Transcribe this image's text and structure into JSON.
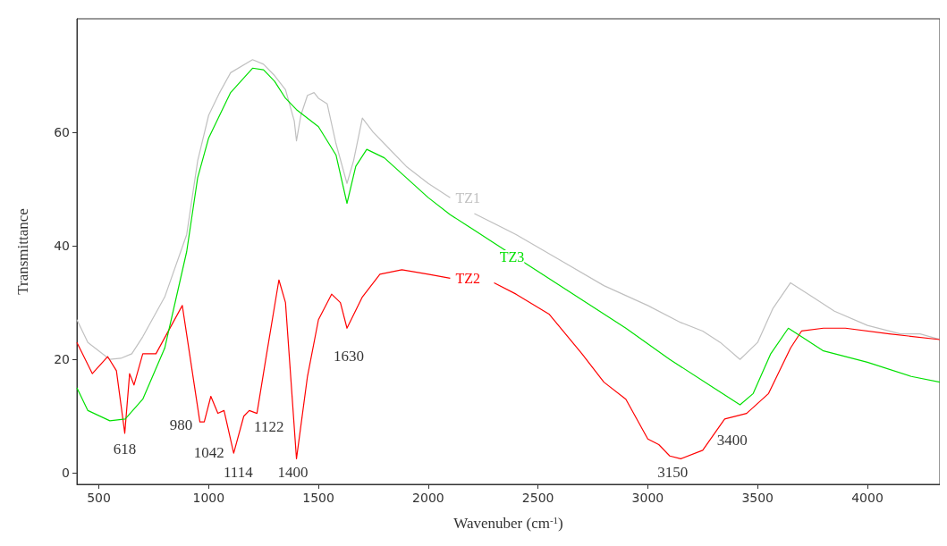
{
  "chart_data": {
    "type": "line",
    "xlabel": "Wavenuber (cm$^{-1}$)",
    "ylabel": "Transmittance",
    "xlim": [
      400,
      4330
    ],
    "ylim": [
      -2,
      80
    ],
    "xticks": [
      500,
      1000,
      1500,
      2000,
      2500,
      3000,
      3500,
      4000
    ],
    "yticks": [
      0,
      20,
      40,
      60
    ],
    "grid": false,
    "legend": false,
    "marker": "none",
    "line_style": "solid",
    "series": [
      {
        "name": "TZ1",
        "color": "#c0c0c0",
        "x": [
          400,
          450,
          550,
          600,
          650,
          700,
          800,
          900,
          950,
          1000,
          1050,
          1100,
          1200,
          1250,
          1300,
          1350,
          1390,
          1400,
          1420,
          1450,
          1480,
          1500,
          1540,
          1580,
          1630,
          1660,
          1700,
          1750,
          1800,
          1900,
          2000,
          2100,
          2150,
          2210,
          2400,
          2600,
          2800,
          3000,
          3150,
          3250,
          3330,
          3420,
          3500,
          3570,
          3650,
          3750,
          3850,
          4000,
          4150,
          4240,
          4330
        ],
        "values": [
          27,
          23,
          20,
          20.2,
          21,
          24,
          31,
          42,
          55,
          63,
          67,
          70.5,
          72.8,
          72,
          70,
          67.5,
          62,
          58.5,
          63,
          66.5,
          67,
          66,
          65,
          58,
          51,
          55,
          62.5,
          60,
          58,
          54,
          51,
          48.5,
          null,
          45.7,
          42,
          37.5,
          33,
          29.5,
          26.5,
          25,
          23,
          20,
          23,
          29,
          33.5,
          31,
          28.5,
          26,
          24.5,
          24.5,
          23.5
        ]
      },
      {
        "name": "TZ2",
        "color": "#ff0000",
        "x": [
          400,
          470,
          540,
          580,
          618,
          640,
          660,
          700,
          760,
          880,
          960,
          980,
          1010,
          1042,
          1070,
          1114,
          1160,
          1185,
          1220,
          1260,
          1320,
          1350,
          1400,
          1450,
          1500,
          1560,
          1600,
          1630,
          1700,
          1780,
          1880,
          2000,
          2100,
          2200,
          2300,
          2400,
          2550,
          2700,
          2800,
          2900,
          3000,
          3050,
          3100,
          3150,
          3250,
          3350,
          3450,
          3550,
          3650,
          3700,
          3800,
          3900,
          4100,
          4330
        ],
        "values": [
          23,
          17.5,
          20.5,
          18,
          7,
          17.5,
          15.5,
          21,
          21,
          29.5,
          9,
          9,
          13.5,
          10.5,
          11,
          3.5,
          10,
          11,
          10.5,
          20,
          34,
          30,
          2.5,
          17,
          27,
          31.5,
          30,
          25.5,
          31,
          35,
          35.8,
          35,
          34.3,
          null,
          33.5,
          31.5,
          28,
          21,
          16,
          13,
          6,
          5,
          3,
          2.5,
          4,
          9.5,
          10.5,
          14,
          22,
          25,
          25.5,
          25.5,
          24.5,
          23.5
        ]
      },
      {
        "name": "TZ3",
        "color": "#00e000",
        "x": [
          400,
          450,
          550,
          620,
          700,
          800,
          900,
          950,
          1000,
          1100,
          1200,
          1250,
          1300,
          1350,
          1400,
          1500,
          1580,
          1630,
          1670,
          1720,
          1800,
          1900,
          2000,
          2100,
          2200,
          2300,
          2500,
          2700,
          2900,
          3100,
          3300,
          3420,
          3480,
          3560,
          3640,
          3700,
          3800,
          4000,
          4200,
          4330
        ],
        "values": [
          15,
          11,
          9.2,
          9.5,
          13,
          22,
          39,
          52,
          59,
          67,
          71.3,
          71,
          69,
          66,
          64,
          61,
          56,
          47.5,
          54,
          57,
          55.5,
          52,
          48.5,
          45.5,
          43,
          40.5,
          35.5,
          30.5,
          25.5,
          20,
          15,
          12,
          14,
          21,
          25.5,
          24,
          21.5,
          19.5,
          17,
          16
        ]
      }
    ],
    "annotations": [
      {
        "text": "618",
        "x": 618,
        "y": 7
      },
      {
        "text": "980",
        "x": 980,
        "y": 9
      },
      {
        "text": "1042",
        "x": 1042,
        "y": 10.5
      },
      {
        "text": "1114",
        "x": 1114,
        "y": 3.5
      },
      {
        "text": "1122",
        "x": 1185,
        "y": 11
      },
      {
        "text": "1400",
        "x": 1400,
        "y": 2.5
      },
      {
        "text": "1630",
        "x": 1630,
        "y": 25.5
      },
      {
        "text": "3150",
        "x": 3150,
        "y": 2.5
      },
      {
        "text": "3400",
        "x": 3400,
        "y": 10.5
      }
    ]
  }
}
